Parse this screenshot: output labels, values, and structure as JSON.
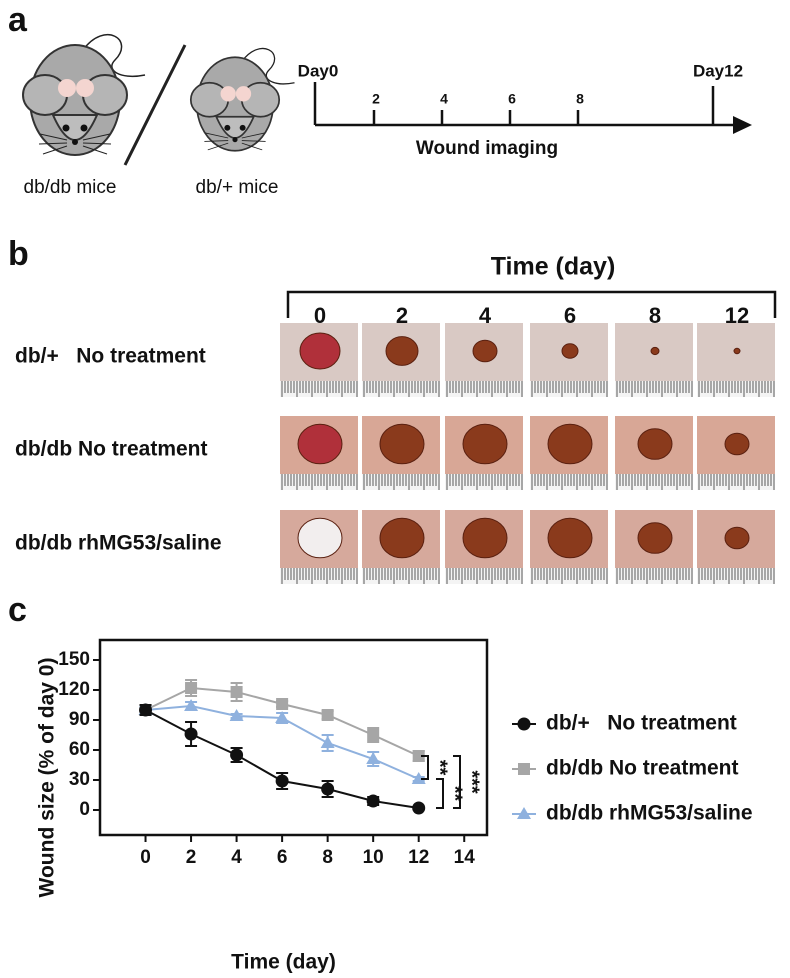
{
  "panel_a": {
    "label": "a",
    "mice": [
      "db/db mice",
      "db/+ mice"
    ],
    "timeline": {
      "start": "Day0",
      "end": "Day12",
      "ticks": [
        "2",
        "4",
        "6",
        "8"
      ],
      "label": "Wound imaging"
    }
  },
  "panel_b": {
    "label": "b",
    "title": "Time (day)",
    "columns": [
      "0",
      "2",
      "4",
      "6",
      "8",
      "12"
    ],
    "rows": [
      "db/+   No treatment",
      "db/db No treatment",
      "db/db rhMG53/saline"
    ]
  },
  "panel_c": {
    "label": "c"
  },
  "chart_data": {
    "type": "line",
    "x_label": "Time (day)",
    "y_label": "Wound size (% of day 0)",
    "x": [
      0,
      2,
      4,
      6,
      8,
      10,
      12
    ],
    "series": [
      {
        "name": "db/+   No treatment",
        "color": "#111111",
        "marker": "circle",
        "values": [
          100,
          76,
          55,
          29,
          21,
          9,
          2
        ],
        "errors": [
          5,
          12,
          7,
          8,
          8,
          4,
          0
        ]
      },
      {
        "name": "db/db No treatment",
        "color": "#a6a6a6",
        "marker": "square",
        "values": [
          100,
          122,
          118,
          106,
          95,
          75,
          54
        ],
        "errors": [
          5,
          8,
          9,
          3,
          4,
          7,
          5
        ]
      },
      {
        "name": "db/db rhMG53/saline",
        "color": "#8fb1de",
        "marker": "triangle",
        "values": [
          100,
          104,
          94,
          92,
          67,
          51,
          31
        ],
        "errors": [
          3,
          4,
          2,
          5,
          8,
          7,
          2
        ]
      }
    ],
    "xlim": [
      -2,
      15
    ],
    "xticks": [
      0,
      2,
      4,
      6,
      8,
      10,
      12,
      14
    ],
    "ylim": [
      -25,
      170
    ],
    "yticks": [
      0,
      30,
      60,
      90,
      120,
      150
    ],
    "annotations": [
      "**",
      "**",
      "***"
    ],
    "legend": "right"
  }
}
